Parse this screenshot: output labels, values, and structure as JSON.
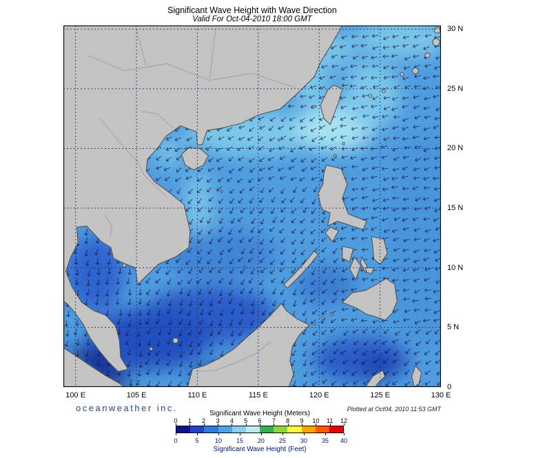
{
  "header": {
    "title": "Significant Wave Height with Wave Direction",
    "subtitle": "Valid For Oct-04-2010 18:00 GMT"
  },
  "map": {
    "lat_labels": [
      {
        "text": "30 N",
        "lat": 30
      },
      {
        "text": "25 N",
        "lat": 25
      },
      {
        "text": "20 N",
        "lat": 20
      },
      {
        "text": "15 N",
        "lat": 15
      },
      {
        "text": "10 N",
        "lat": 10
      },
      {
        "text": "5 N",
        "lat": 5
      },
      {
        "text": "0",
        "lat": 0
      }
    ],
    "lon_labels": [
      {
        "text": "100 E",
        "lon": 100
      },
      {
        "text": "105 E",
        "lon": 105
      },
      {
        "text": "110 E",
        "lon": 110
      },
      {
        "text": "115 E",
        "lon": 115
      },
      {
        "text": "120 E",
        "lon": 120
      },
      {
        "text": "125 E",
        "lon": 125
      },
      {
        "text": "130 E",
        "lon": 130
      }
    ]
  },
  "footer": {
    "credit": "oceanweather inc.",
    "plotted": "Plotted at Oct04, 2010 11:53 GMT"
  },
  "legend": {
    "meters_title": "Significant Wave Height (Meters)",
    "feet_title": "Significant Wave Height (Feet)",
    "meters_ticks": [
      "0",
      "1",
      "2",
      "3",
      "4",
      "5",
      "6",
      "7",
      "8",
      "9",
      "10",
      "11",
      "12"
    ],
    "feet_ticks": [
      "0",
      "5",
      "10",
      "15",
      "20",
      "25",
      "30",
      "35",
      "40"
    ],
    "colors": [
      "#11118f",
      "#2244cc",
      "#2e7bdb",
      "#4da3e8",
      "#86cdf0",
      "#baeef2",
      "#35b04a",
      "#8fd636",
      "#ffff40",
      "#ffa500",
      "#ff5a00",
      "#e80000"
    ]
  },
  "theme": {
    "land-color": "#c3c3c3",
    "coast-color": "#4b4b4b",
    "sea-base": "#4f9ddf",
    "grid-color": "#1c2b5e",
    "arrow-color": "#14143c",
    "frame-color": "#000000",
    "credit-color": "#27456e",
    "plotted-color": "#222222",
    "feet-color": "#00128b"
  }
}
